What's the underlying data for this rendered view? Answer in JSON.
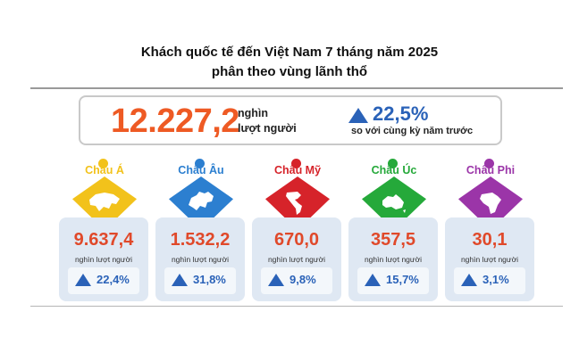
{
  "title": {
    "line1": "Khách quốc tế đến Việt Nam 7 tháng năm 2025",
    "line2": "phân theo vùng lãnh thổ"
  },
  "summary": {
    "total": "12.227,2",
    "unit_line1": "nghìn",
    "unit_line2": "lượt người",
    "growth": "22,5%",
    "compare_text": "so với cùng kỳ năm trước"
  },
  "colors": {
    "accent_orange": "#ee5a24",
    "accent_blue": "#2a62b8"
  },
  "regions": [
    {
      "name": "Châu Á",
      "value": "9.637,4",
      "unit": "nghìn lượt người",
      "growth": "22,4%",
      "color": "#f2c21b",
      "icon": "asia-map-icon"
    },
    {
      "name": "Châu Âu",
      "value": "1.532,2",
      "unit": "nghìn lượt người",
      "growth": "31,8%",
      "color": "#2c7fd0",
      "icon": "europe-map-icon"
    },
    {
      "name": "Châu Mỹ",
      "value": "670,0",
      "unit": "nghìn lượt người",
      "growth": "9,8%",
      "color": "#d6232a",
      "icon": "americas-map-icon"
    },
    {
      "name": "Châu Úc",
      "value": "357,5",
      "unit": "nghìn lượt người",
      "growth": "15,7%",
      "color": "#25a93a",
      "icon": "oceania-map-icon"
    },
    {
      "name": "Châu Phi",
      "value": "30,1",
      "unit": "nghìn lượt người",
      "growth": "3,1%",
      "color": "#9b35a8",
      "icon": "africa-map-icon"
    }
  ]
}
